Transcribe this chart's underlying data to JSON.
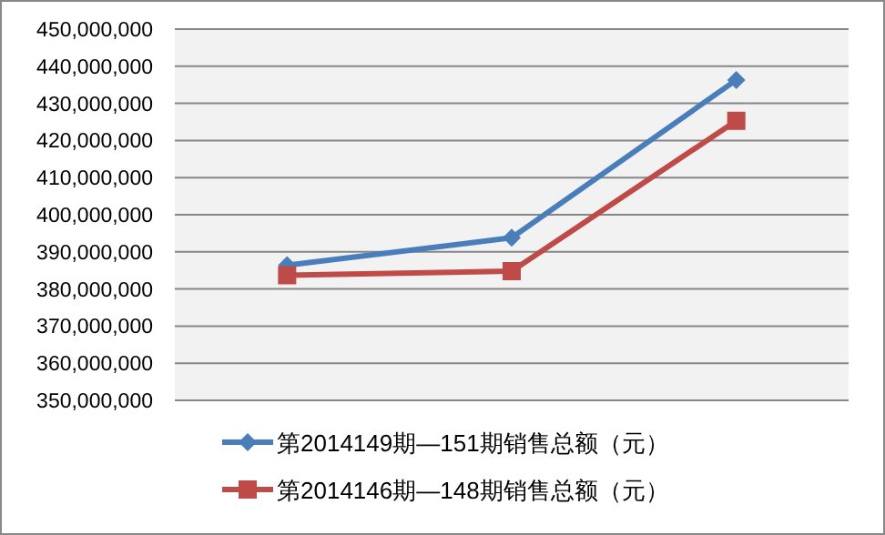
{
  "chart_data": {
    "type": "line",
    "categories": [
      null,
      null,
      null
    ],
    "series": [
      {
        "name": "第2014149期—151期销售总额（元）",
        "color": "#4a7ebb",
        "marker": "diamond",
        "values": [
          386400000,
          393800000,
          436300000
        ]
      },
      {
        "name": "第2014146期—148期销售总额（元）",
        "color": "#be4b48",
        "marker": "square",
        "values": [
          383700000,
          384800000,
          425300000
        ]
      }
    ],
    "ylim": [
      350000000,
      450000000
    ],
    "yticks": [
      {
        "value": 350000000,
        "label": "350,000,000"
      },
      {
        "value": 360000000,
        "label": "360,000,000"
      },
      {
        "value": 370000000,
        "label": "370,000,000"
      },
      {
        "value": 380000000,
        "label": "380,000,000"
      },
      {
        "value": 390000000,
        "label": "390,000,000"
      },
      {
        "value": 400000000,
        "label": "400,000,000"
      },
      {
        "value": 410000000,
        "label": "410,000,000"
      },
      {
        "value": 420000000,
        "label": "420,000,000"
      },
      {
        "value": 430000000,
        "label": "430,000,000"
      },
      {
        "value": 440000000,
        "label": "440,000,000"
      },
      {
        "value": 450000000,
        "label": "450,000,000"
      }
    ],
    "grid": "y",
    "legend": "bottom"
  }
}
